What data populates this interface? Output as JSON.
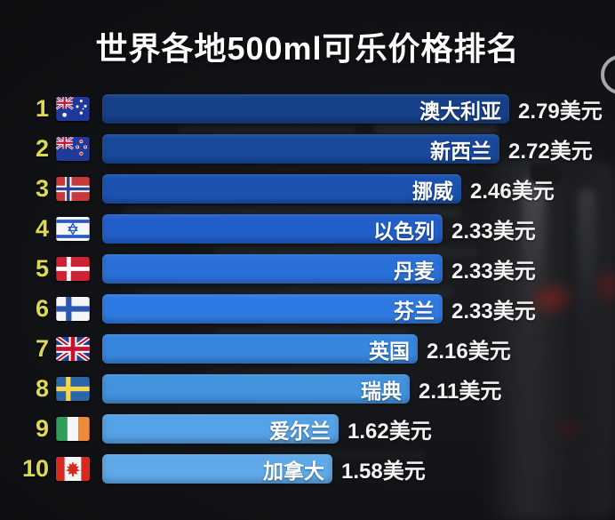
{
  "page": {
    "title": "世界各地500ml可乐价格排名"
  },
  "colors": {
    "background": "#101114",
    "title_text": "#ffffff",
    "rank_text": "#ded952",
    "bar_label_text": "#ffffff",
    "price_text": "#f4f4f4",
    "watermark_ring": "#bec2c6"
  },
  "chart_data": {
    "type": "bar",
    "orientation": "horizontal",
    "title": "世界各地500ml可乐价格排名",
    "unit": "美元",
    "value_suffix": "美元",
    "xlim": [
      0,
      2.9
    ],
    "sort": "descending",
    "categories": [
      "澳大利亚",
      "新西兰",
      "挪威",
      "以色列",
      "丹麦",
      "芬兰",
      "英国",
      "瑞典",
      "爱尔兰",
      "加拿大"
    ],
    "values": [
      2.79,
      2.72,
      2.46,
      2.33,
      2.33,
      2.33,
      2.16,
      2.11,
      1.62,
      1.58
    ],
    "rows": [
      {
        "rank": "1",
        "country": "澳大利亚",
        "flag": "australia",
        "value": 2.79,
        "label": "2.79美元",
        "bar_color": "#164189"
      },
      {
        "rank": "2",
        "country": "新西兰",
        "flag": "new-zealand",
        "value": 2.72,
        "label": "2.72美元",
        "bar_color": "#19499c"
      },
      {
        "rank": "3",
        "country": "挪威",
        "flag": "norway",
        "value": 2.46,
        "label": "2.46美元",
        "bar_color": "#1c53b2"
      },
      {
        "rank": "4",
        "country": "以色列",
        "flag": "israel",
        "value": 2.33,
        "label": "2.33美元",
        "bar_color": "#2160ca"
      },
      {
        "rank": "5",
        "country": "丹麦",
        "flag": "denmark",
        "value": 2.33,
        "label": "2.33美元",
        "bar_color": "#2a70d8"
      },
      {
        "rank": "6",
        "country": "芬兰",
        "flag": "finland",
        "value": 2.33,
        "label": "2.33美元",
        "bar_color": "#2f7ae2"
      },
      {
        "rank": "7",
        "country": "英国",
        "flag": "united-kingdom",
        "value": 2.16,
        "label": "2.16美元",
        "bar_color": "#3786e0"
      },
      {
        "rank": "8",
        "country": "瑞典",
        "flag": "sweden",
        "value": 2.11,
        "label": "2.11美元",
        "bar_color": "#4392de"
      },
      {
        "rank": "9",
        "country": "爱尔兰",
        "flag": "ireland",
        "value": 1.62,
        "label": "1.62美元",
        "bar_color": "#55a2e6"
      },
      {
        "rank": "10",
        "country": "加拿大",
        "flag": "canada",
        "value": 1.58,
        "label": "1.58美元",
        "bar_color": "#5fa9e9"
      }
    ]
  }
}
